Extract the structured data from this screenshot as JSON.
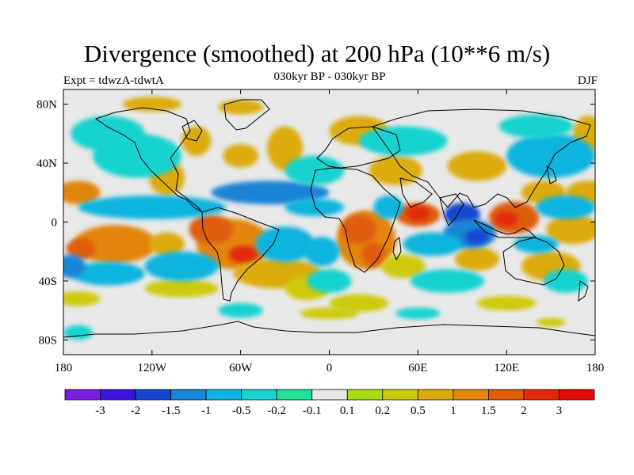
{
  "chart_data": {
    "type": "heatmap",
    "title": "Divergence (smoothed) at 200 hPa (10**6 m/s)",
    "subtitle": "030kyr BP - 030kyr BP",
    "left_label": "Expt = tdwzA-tdwtA",
    "right_label": "DJF",
    "x_ticks": [
      {
        "lon": -180,
        "label": "180"
      },
      {
        "lon": -120,
        "label": "120W"
      },
      {
        "lon": -60,
        "label": "60W"
      },
      {
        "lon": 0,
        "label": "0"
      },
      {
        "lon": 60,
        "label": "60E"
      },
      {
        "lon": 120,
        "label": "120E"
      },
      {
        "lon": 180,
        "label": "180"
      }
    ],
    "y_ticks": [
      {
        "lat": 80,
        "label": "80N"
      },
      {
        "lat": 40,
        "label": "40N"
      },
      {
        "lat": 0,
        "label": "0"
      },
      {
        "lat": -40,
        "label": "40S"
      },
      {
        "lat": -80,
        "label": "80S"
      }
    ],
    "xlim": [
      -180,
      180
    ],
    "ylim": [
      -90,
      90
    ],
    "colorbar": {
      "labels": [
        "-3",
        "-2",
        "-1.5",
        "-1",
        "-0.5",
        "-0.2",
        "-0.1",
        "0.1",
        "0.2",
        "0.5",
        "1",
        "1.5",
        "2",
        "3"
      ],
      "colors": [
        "#7a1fe0",
        "#3a14d8",
        "#1746d1",
        "#1a84d6",
        "#10b4de",
        "#16d3d0",
        "#22e09a",
        "#e8e8e8",
        "#a8dc10",
        "#cdca0e",
        "#dcab0b",
        "#e2850b",
        "#e05d0a",
        "#e22a0a",
        "#e60b0b"
      ]
    },
    "blobs": [
      {
        "lon": -65,
        "lat": -15,
        "rx": 25,
        "ry": 17,
        "v": 1.4
      },
      {
        "lon": -58,
        "lat": -22,
        "rx": 10,
        "ry": 6,
        "v": 2.0
      },
      {
        "lon": -80,
        "lat": -5,
        "rx": 15,
        "ry": 10,
        "v": 1.5
      },
      {
        "lon": -35,
        "lat": -35,
        "rx": 30,
        "ry": 10,
        "v": 0.7
      },
      {
        "lon": -15,
        "lat": -45,
        "rx": 15,
        "ry": 8,
        "v": 0.3
      },
      {
        "lon": -145,
        "lat": -15,
        "rx": 28,
        "ry": 13,
        "v": 1.2
      },
      {
        "lon": -168,
        "lat": -18,
        "rx": 10,
        "ry": 7,
        "v": 1.6
      },
      {
        "lon": -110,
        "lat": -15,
        "rx": 12,
        "ry": 8,
        "v": 0.6
      },
      {
        "lon": -170,
        "lat": 20,
        "rx": 15,
        "ry": 8,
        "v": 1.0
      },
      {
        "lon": -110,
        "lat": 30,
        "rx": 12,
        "ry": 12,
        "v": 0.6
      },
      {
        "lon": -90,
        "lat": 55,
        "rx": 10,
        "ry": 10,
        "v": 0.7
      },
      {
        "lon": -60,
        "lat": 45,
        "rx": 12,
        "ry": 8,
        "v": 0.5
      },
      {
        "lon": -30,
        "lat": 50,
        "rx": 12,
        "ry": 15,
        "v": 0.6
      },
      {
        "lon": -120,
        "lat": 80,
        "rx": 20,
        "ry": 5,
        "v": 0.5
      },
      {
        "lon": -60,
        "lat": 78,
        "rx": 15,
        "ry": 5,
        "v": 0.5
      },
      {
        "lon": 20,
        "lat": 62,
        "rx": 20,
        "ry": 10,
        "v": 0.5
      },
      {
        "lon": 45,
        "lat": 35,
        "rx": 18,
        "ry": 10,
        "v": 0.5
      },
      {
        "lon": 100,
        "lat": 38,
        "rx": 20,
        "ry": 10,
        "v": 0.6
      },
      {
        "lon": 145,
        "lat": 20,
        "rx": 15,
        "ry": 8,
        "v": 0.5
      },
      {
        "lon": 175,
        "lat": 20,
        "rx": 15,
        "ry": 8,
        "v": 0.8
      },
      {
        "lon": 175,
        "lat": 60,
        "rx": 10,
        "ry": 12,
        "v": 0.5
      },
      {
        "lon": 25,
        "lat": -12,
        "rx": 20,
        "ry": 20,
        "v": 1.0
      },
      {
        "lon": 20,
        "lat": -5,
        "rx": 12,
        "ry": 10,
        "v": 1.6
      },
      {
        "lon": 30,
        "lat": -22,
        "rx": 8,
        "ry": 8,
        "v": 1.5
      },
      {
        "lon": 60,
        "lat": 5,
        "rx": 15,
        "ry": 8,
        "v": 1.5
      },
      {
        "lon": 60,
        "lat": 6,
        "rx": 8,
        "ry": 5,
        "v": 2.3
      },
      {
        "lon": 125,
        "lat": 3,
        "rx": 17,
        "ry": 11,
        "v": 1.6
      },
      {
        "lon": 120,
        "lat": 2,
        "rx": 8,
        "ry": 5,
        "v": 2.5
      },
      {
        "lon": 165,
        "lat": -5,
        "rx": 18,
        "ry": 10,
        "v": 0.8
      },
      {
        "lon": 150,
        "lat": -30,
        "rx": 20,
        "ry": 10,
        "v": 0.5
      },
      {
        "lon": 100,
        "lat": -25,
        "rx": 15,
        "ry": 8,
        "v": 0.5
      },
      {
        "lon": 50,
        "lat": -30,
        "rx": 15,
        "ry": 8,
        "v": 0.4
      },
      {
        "lon": 20,
        "lat": -55,
        "rx": 20,
        "ry": 6,
        "v": 0.3
      },
      {
        "lon": 120,
        "lat": -55,
        "rx": 20,
        "ry": 5,
        "v": 0.3
      },
      {
        "lon": -100,
        "lat": -45,
        "rx": 25,
        "ry": 6,
        "v": 0.3
      },
      {
        "lon": 0,
        "lat": -62,
        "rx": 20,
        "ry": 4,
        "v": 0.4
      },
      {
        "lon": -170,
        "lat": -52,
        "rx": 15,
        "ry": 5,
        "v": 0.3
      },
      {
        "lon": 150,
        "lat": -68,
        "rx": 10,
        "ry": 3,
        "v": 0.4
      },
      {
        "lon": -40,
        "lat": 20,
        "rx": 40,
        "ry": 8,
        "v": -1.2
      },
      {
        "lon": -10,
        "lat": 10,
        "rx": 20,
        "ry": 6,
        "v": -0.8
      },
      {
        "lon": -120,
        "lat": 10,
        "rx": 50,
        "ry": 8,
        "v": -1.0
      },
      {
        "lon": -130,
        "lat": 45,
        "rx": 30,
        "ry": 15,
        "v": -0.5
      },
      {
        "lon": -150,
        "lat": 60,
        "rx": 25,
        "ry": 12,
        "v": -0.5
      },
      {
        "lon": -10,
        "lat": 35,
        "rx": 20,
        "ry": 10,
        "v": -0.5
      },
      {
        "lon": 50,
        "lat": 55,
        "rx": 30,
        "ry": 10,
        "v": -0.4
      },
      {
        "lon": 150,
        "lat": 45,
        "rx": 30,
        "ry": 15,
        "v": -0.6
      },
      {
        "lon": 140,
        "lat": 65,
        "rx": 25,
        "ry": 8,
        "v": -0.4
      },
      {
        "lon": 90,
        "lat": 5,
        "rx": 12,
        "ry": 8,
        "v": -2.0
      },
      {
        "lon": 95,
        "lat": -8,
        "rx": 18,
        "ry": 10,
        "v": -1.2
      },
      {
        "lon": 100,
        "lat": -10,
        "rx": 8,
        "ry": 5,
        "v": -2.0
      },
      {
        "lon": 40,
        "lat": 10,
        "rx": 10,
        "ry": 8,
        "v": -0.6
      },
      {
        "lon": 70,
        "lat": -15,
        "rx": 20,
        "ry": 8,
        "v": -0.8
      },
      {
        "lon": 140,
        "lat": -15,
        "rx": 15,
        "ry": 6,
        "v": -0.8
      },
      {
        "lon": 160,
        "lat": 10,
        "rx": 20,
        "ry": 8,
        "v": -0.8
      },
      {
        "lon": -30,
        "lat": -15,
        "rx": 20,
        "ry": 12,
        "v": -0.7
      },
      {
        "lon": -5,
        "lat": -20,
        "rx": 12,
        "ry": 10,
        "v": -1.0
      },
      {
        "lon": -100,
        "lat": -30,
        "rx": 25,
        "ry": 10,
        "v": -0.8
      },
      {
        "lon": -150,
        "lat": -35,
        "rx": 25,
        "ry": 8,
        "v": -0.6
      },
      {
        "lon": -175,
        "lat": -30,
        "rx": 10,
        "ry": 8,
        "v": -1.4
      },
      {
        "lon": 0,
        "lat": -40,
        "rx": 15,
        "ry": 8,
        "v": -0.5
      },
      {
        "lon": 80,
        "lat": -40,
        "rx": 25,
        "ry": 8,
        "v": -0.4
      },
      {
        "lon": 160,
        "lat": -40,
        "rx": 15,
        "ry": 8,
        "v": -0.4
      },
      {
        "lon": -60,
        "lat": -60,
        "rx": 15,
        "ry": 5,
        "v": -0.3
      },
      {
        "lon": 60,
        "lat": -62,
        "rx": 15,
        "ry": 4,
        "v": -0.3
      },
      {
        "lon": -170,
        "lat": -75,
        "rx": 10,
        "ry": 5,
        "v": -0.3
      }
    ]
  }
}
